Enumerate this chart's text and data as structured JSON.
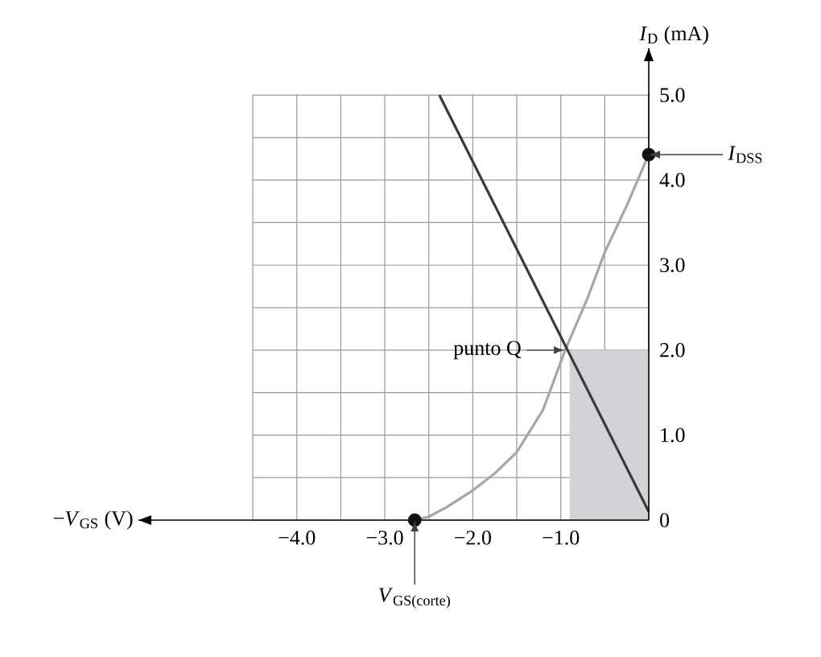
{
  "chart_data": {
    "type": "line",
    "xlabel": "−*V*$_{GS}$ (V)",
    "ylabel": "*I*$_{D}$ (mA)",
    "xlim": [
      -5.8,
      0
    ],
    "ylim": [
      0,
      5.55
    ],
    "xticks": [
      {
        "value": -4.5,
        "label": null
      },
      {
        "value": -4,
        "label": "−4.0"
      },
      {
        "value": -3.5,
        "label": null
      },
      {
        "value": -3,
        "label": "−3.0"
      },
      {
        "value": -2.5,
        "label": null
      },
      {
        "value": -2,
        "label": "−2.0"
      },
      {
        "value": -1.5,
        "label": null
      },
      {
        "value": -1,
        "label": "−1.0"
      },
      {
        "value": -0.5,
        "label": null
      },
      {
        "value": 0,
        "label": null
      }
    ],
    "yticks": [
      0,
      {
        "value": 0.5,
        "label": null
      },
      {
        "value": 1,
        "label": "1.0"
      },
      {
        "value": 1.5,
        "label": null
      },
      {
        "value": 2,
        "label": "2.0"
      },
      {
        "value": 2.5,
        "label": null
      },
      {
        "value": 3,
        "label": "3.0"
      },
      {
        "value": 3.5,
        "label": null
      },
      {
        "value": 4,
        "label": "4.0"
      },
      {
        "value": 4.5,
        "label": null
      },
      {
        "value": 5,
        "label": "5.0"
      }
    ],
    "grid": true,
    "marker": "none",
    "series": [
      {
        "type": "area",
        "color": "#d2d3d5",
        "x": [
          -0.9,
          0
        ],
        "values": [
          2.0,
          2.0
        ]
      },
      {
        "color": "#a6a6a6",
        "x": [
          -2.66,
          -2.5,
          -2.3,
          -2.0,
          -1.75,
          -1.5,
          -1.2,
          -0.95,
          -0.7,
          -0.5,
          -0.25,
          0
        ],
        "values": [
          0,
          0.04,
          0.15,
          0.35,
          0.55,
          0.8,
          1.3,
          2.0,
          2.6,
          3.15,
          3.7,
          4.3
        ]
      },
      {
        "color": "#3a3a3a",
        "x": [
          -2.38,
          0
        ],
        "values": [
          5.0,
          0.1
        ]
      },
      {
        "type": "scatter",
        "color": "#111111",
        "marker": "circle",
        "x": [
          -2.66,
          0
        ],
        "values": [
          0,
          4.3
        ]
      }
    ],
    "annotations": [
      {
        "text": "punto Q",
        "x": -0.95,
        "y": 2.0
      },
      "*I*$_{DSS}$",
      {
        "text": "*V*$_{GS(corte)}$",
        "x": -2.66,
        "y": 0
      }
    ]
  }
}
